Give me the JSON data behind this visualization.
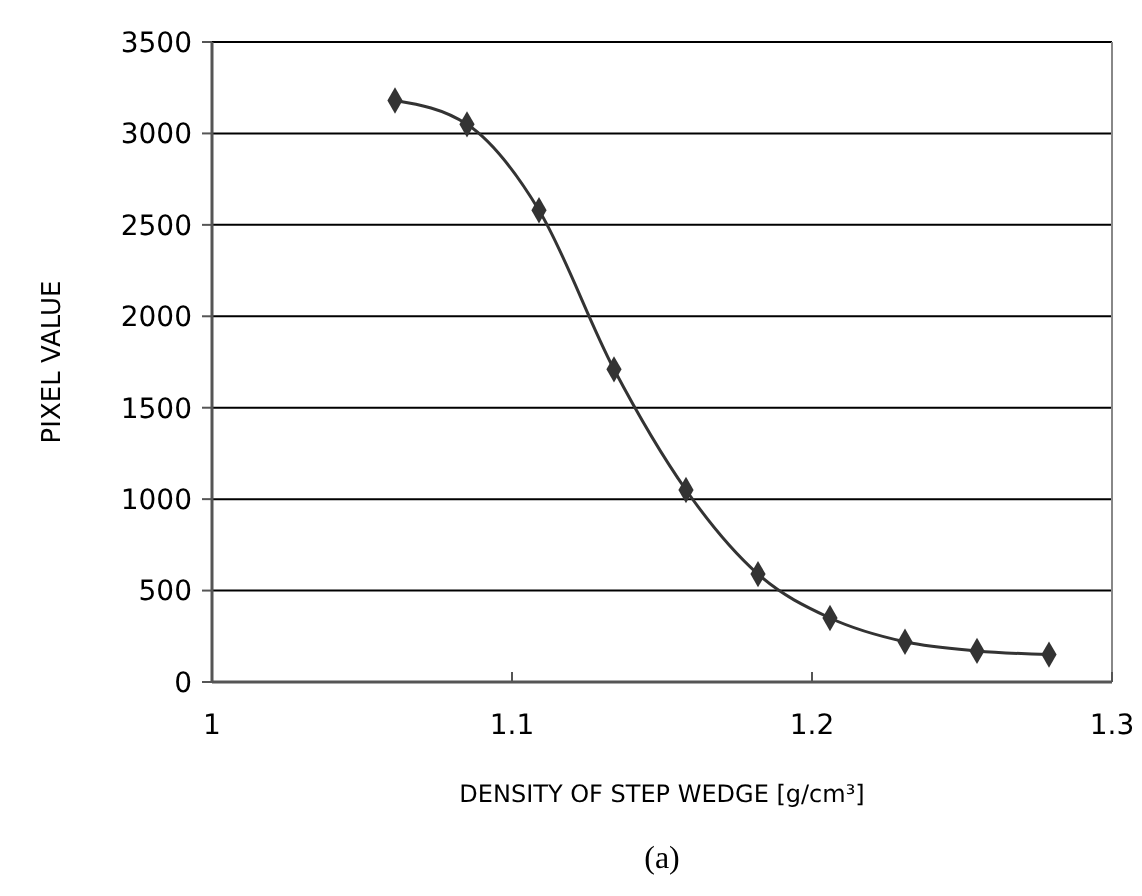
{
  "chart_data": {
    "type": "line",
    "xlabel": "DENSITY OF STEP WEDGE [g/cm³]",
    "ylabel": "PIXEL VALUE",
    "annotations": [
      "(a)"
    ],
    "x": [
      1.061,
      1.085,
      1.109,
      1.134,
      1.158,
      1.182,
      1.206,
      1.231,
      1.255,
      1.279
    ],
    "series": [
      {
        "color": "#333333",
        "values": [
          3180,
          3050,
          2580,
          1710,
          1050,
          590,
          350,
          220,
          170,
          150
        ]
      }
    ],
    "xlim": [
      1,
      1.3
    ],
    "xticks": [
      1,
      1.1,
      1.2,
      1.3
    ],
    "ylim": [
      0,
      3500
    ],
    "yticks": [
      0,
      500,
      1000,
      1500,
      2000,
      2500,
      3000,
      3500
    ],
    "grid": "y",
    "marker": "diamond",
    "line_style": "solid"
  }
}
